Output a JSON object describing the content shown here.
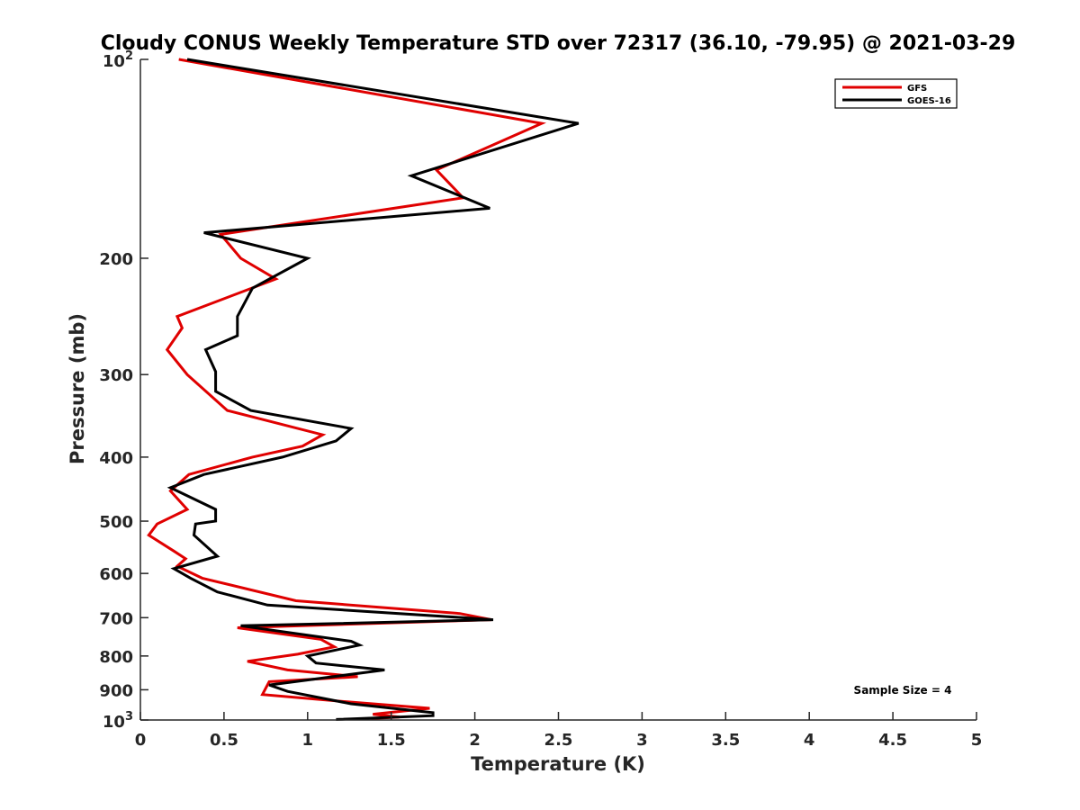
{
  "chart_data": {
    "type": "line",
    "title": "Cloudy CONUS Weekly Temperature STD over 72317 (36.10, -79.95) @ 2021-03-29",
    "xlabel": "Temperature (K)",
    "ylabel": "Pressure (mb)",
    "xlim": [
      0,
      5
    ],
    "ylim": [
      100,
      1000
    ],
    "y_scale": "log",
    "y_reversed": true,
    "x_ticks": [
      "0",
      "0.5",
      "1",
      "1.5",
      "2",
      "2.5",
      "3",
      "3.5",
      "4",
      "4.5",
      "5"
    ],
    "y_ticks": [
      {
        "value": 100,
        "base": "10",
        "exp": "2",
        "label": ""
      },
      {
        "value": 200,
        "base": "",
        "exp": "",
        "label": "200"
      },
      {
        "value": 300,
        "base": "",
        "exp": "",
        "label": "300"
      },
      {
        "value": 400,
        "base": "",
        "exp": "",
        "label": "400"
      },
      {
        "value": 500,
        "base": "",
        "exp": "",
        "label": "500"
      },
      {
        "value": 600,
        "base": "",
        "exp": "",
        "label": "600"
      },
      {
        "value": 700,
        "base": "",
        "exp": "",
        "label": "700"
      },
      {
        "value": 800,
        "base": "",
        "exp": "",
        "label": "800"
      },
      {
        "value": 900,
        "base": "",
        "exp": "",
        "label": "900"
      },
      {
        "value": 1000,
        "base": "10",
        "exp": "3",
        "label": ""
      }
    ],
    "grid": false,
    "legend_position": "top-right",
    "annotation": "Sample Size = 4",
    "series": [
      {
        "name": "GFS",
        "color": "#e00000",
        "points": [
          [
            0.23,
            100
          ],
          [
            2.4,
            125
          ],
          [
            1.77,
            147
          ],
          [
            1.93,
            162
          ],
          [
            0.48,
            184
          ],
          [
            0.6,
            200
          ],
          [
            0.81,
            215
          ],
          [
            0.22,
            245
          ],
          [
            0.25,
            255
          ],
          [
            0.16,
            275
          ],
          [
            0.28,
            300
          ],
          [
            0.52,
            340
          ],
          [
            1.09,
            370
          ],
          [
            0.97,
            385
          ],
          [
            0.67,
            400
          ],
          [
            0.29,
            425
          ],
          [
            0.18,
            450
          ],
          [
            0.28,
            480
          ],
          [
            0.1,
            505
          ],
          [
            0.05,
            525
          ],
          [
            0.2,
            555
          ],
          [
            0.27,
            570
          ],
          [
            0.22,
            585
          ],
          [
            0.37,
            610
          ],
          [
            0.93,
            660
          ],
          [
            1.91,
            690
          ],
          [
            2.1,
            705
          ],
          [
            0.58,
            725
          ],
          [
            1.08,
            755
          ],
          [
            1.16,
            775
          ],
          [
            0.94,
            795
          ],
          [
            0.64,
            815
          ],
          [
            0.88,
            840
          ],
          [
            1.3,
            860
          ],
          [
            0.77,
            875
          ],
          [
            0.73,
            915
          ],
          [
            1.27,
            940
          ],
          [
            1.73,
            960
          ],
          [
            1.39,
            980
          ],
          [
            1.55,
            990
          ],
          [
            1.38,
            995
          ]
        ]
      },
      {
        "name": "GOES-16",
        "color": "#000000",
        "points": [
          [
            0.28,
            100
          ],
          [
            2.62,
            125
          ],
          [
            1.62,
            150
          ],
          [
            2.09,
            168
          ],
          [
            0.38,
            183
          ],
          [
            1.0,
            200
          ],
          [
            0.67,
            222
          ],
          [
            0.58,
            245
          ],
          [
            0.58,
            262
          ],
          [
            0.39,
            275
          ],
          [
            0.45,
            297
          ],
          [
            0.45,
            318
          ],
          [
            0.66,
            340
          ],
          [
            1.26,
            362
          ],
          [
            1.17,
            378
          ],
          [
            0.85,
            400
          ],
          [
            0.38,
            425
          ],
          [
            0.18,
            445
          ],
          [
            0.45,
            480
          ],
          [
            0.45,
            500
          ],
          [
            0.33,
            505
          ],
          [
            0.32,
            525
          ],
          [
            0.46,
            565
          ],
          [
            0.2,
            590
          ],
          [
            0.3,
            610
          ],
          [
            0.46,
            640
          ],
          [
            0.76,
            670
          ],
          [
            1.93,
            700
          ],
          [
            2.11,
            705
          ],
          [
            0.6,
            720
          ],
          [
            1.26,
            760
          ],
          [
            1.31,
            770
          ],
          [
            1.0,
            800
          ],
          [
            1.05,
            820
          ],
          [
            1.46,
            840
          ],
          [
            0.77,
            885
          ],
          [
            0.88,
            905
          ],
          [
            1.26,
            945
          ],
          [
            1.75,
            975
          ],
          [
            1.75,
            985
          ],
          [
            1.17,
            998
          ]
        ]
      }
    ]
  }
}
